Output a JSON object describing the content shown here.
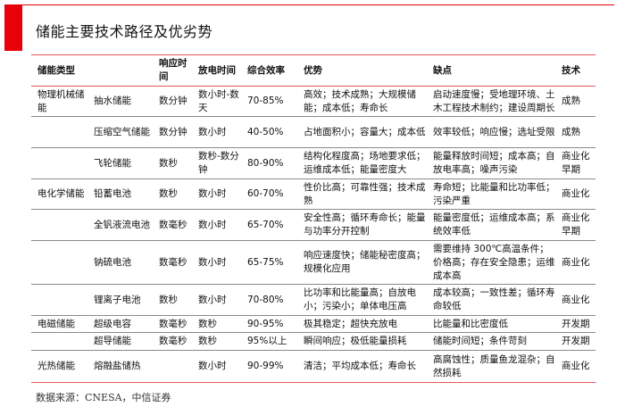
{
  "title": "储能主要技术路径及优劣势",
  "colors": {
    "accent": "#e8000b",
    "rule": "#e5575c"
  },
  "table": {
    "headers": [
      "储能类型",
      "",
      "响应时间",
      "放电时间",
      "综合效率",
      "优势",
      "缺点",
      "技术"
    ],
    "rows": [
      [
        "物理机械储能",
        "抽水储能",
        "数分钟",
        "数小时-数天",
        "70-85%",
        "高效；技术成熟；大规模储能；成本低；寿命长",
        "启动速度慢；受地理环境、土木工程技术制约；建设周期长",
        "成熟"
      ],
      [
        "",
        "压缩空气储能",
        "数分钟",
        "数小时",
        "40-50%",
        "占地面积小；容量大；成本低",
        "效率较低；响应慢；选址受限",
        "成熟"
      ],
      [
        "",
        "飞轮储能",
        "数秒",
        "数秒-数分钟",
        "80-90%",
        "结构化程度高；场地要求低；运维成本低；能量密度大",
        "能量释放时间短；成本高；自放电率高；噪声污染",
        "商业化早期"
      ],
      [
        "电化学储能",
        "铅蓄电池",
        "数秒",
        "数小时",
        "60-70%",
        "性价比高；可靠性强；技术成熟",
        "寿命短；比能量和比功率低；污染严重",
        "商业化"
      ],
      [
        "",
        "全钒液流电池",
        "数毫秒",
        "数小时",
        "65-70%",
        "安全性高；循环寿命长；能量与功率分开控制",
        "能量密度低；运维成本高；系统效率低",
        "商业化早期"
      ],
      [
        "",
        "钠硫电池",
        "数毫秒",
        "数小时",
        "65-75%",
        "响应速度快；储能秘密度高；规模化应用",
        "需要维持 300℃高温条件；价格高；存在安全隐患；运维成本高",
        "商业化"
      ],
      [
        "",
        "锂离子电池",
        "数秒",
        "数小时",
        "70-80%",
        "比功率和比能量高；自放电小；污染小；单体电压高",
        "成本较高；一致性差；循环寿命较低",
        "商业化"
      ],
      [
        "电磁储能",
        "超级电容",
        "数毫秒",
        "数秒",
        "90-95%",
        "极其稳定；超快充放电",
        "比能量和比密度低",
        "开发期"
      ],
      [
        "",
        "超导储能",
        "数毫秒",
        "数秒",
        "95%以上",
        "瞬间响应；极低能量损耗",
        "储能时间短；条件苛刻",
        "开发期"
      ],
      [
        "光热储能",
        "熔融盐储热",
        "",
        "数小时",
        "90-99%",
        "清洁；平均成本低；寿命长",
        "高腐蚀性；质量鱼龙混杂；自然损耗",
        "商业化"
      ]
    ]
  },
  "footer": "数据来源：CNESA，中信证券"
}
